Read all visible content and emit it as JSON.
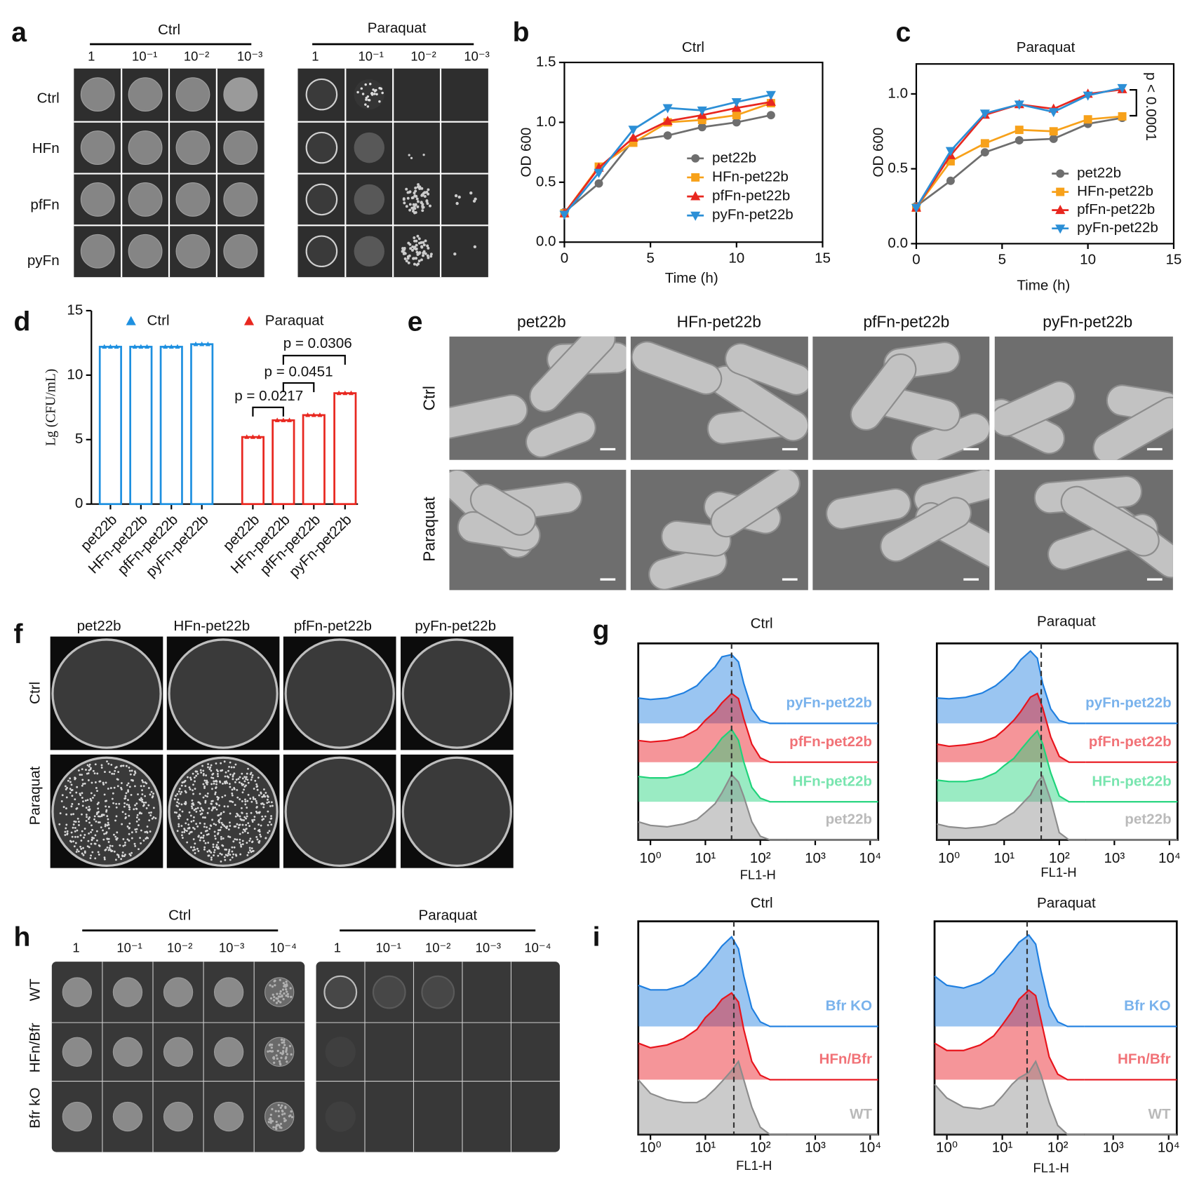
{
  "panel_labels": [
    "a",
    "b",
    "c",
    "d",
    "e",
    "f",
    "g",
    "h",
    "i"
  ],
  "panel_a": {
    "groups": [
      "Ctrl",
      "Paraquat"
    ],
    "dilutions": [
      "1",
      "10⁻¹",
      "10⁻²",
      "10⁻³"
    ],
    "rows": [
      "Ctrl",
      "HFn",
      "pfFn",
      "pyFn"
    ]
  },
  "panel_e": {
    "columns": [
      "pet22b",
      "HFn-pet22b",
      "pfFn-pet22b",
      "pyFn-pet22b"
    ],
    "rows": [
      "Ctrl",
      "Paraquat"
    ]
  },
  "panel_f": {
    "columns": [
      "pet22b",
      "HFn-pet22b",
      "pfFn-pet22b",
      "pyFn-pet22b"
    ],
    "rows": [
      "Ctrl",
      "Paraquat"
    ]
  },
  "panel_h": {
    "groups": [
      "Ctrl",
      "Paraquat"
    ],
    "dilutions": [
      "1",
      "10⁻¹",
      "10⁻²",
      "10⁻³",
      "10⁻⁴"
    ],
    "rows": [
      "WT",
      "HFn/Bfr",
      "Bfr kO"
    ]
  },
  "chart_data": [
    {
      "type": "line",
      "title": "Ctrl",
      "x_label": "Time (h)",
      "y_label": "OD 600",
      "x": [
        0,
        2,
        4,
        6,
        8,
        10,
        12
      ],
      "xlim": [
        0,
        15
      ],
      "xticks": [
        0,
        5,
        10,
        15
      ],
      "ylim": [
        0,
        1.5
      ],
      "yticks": [
        {
          "value": 0,
          "label": "0.0"
        },
        0.5,
        {
          "value": 1,
          "label": "1.0"
        },
        1.5
      ],
      "legend": "lower right",
      "series": [
        {
          "name": "pet22b",
          "color": "#6e6e6e",
          "marker": "circle",
          "values": [
            0.25,
            0.49,
            0.85,
            0.89,
            0.96,
            1.0,
            1.06
          ]
        },
        {
          "name": "HFn-pet22b",
          "color": "#f7a11a",
          "marker": "square",
          "values": [
            0.24,
            0.63,
            0.83,
            1.0,
            1.02,
            1.06,
            1.16
          ]
        },
        {
          "name": "pfFn-pet22b",
          "color": "#e8271f",
          "marker": "triangle",
          "values": [
            0.24,
            0.62,
            0.87,
            1.01,
            1.06,
            1.12,
            1.17
          ]
        },
        {
          "name": "pyFn-pet22b",
          "color": "#2c8fd6",
          "marker": "triangle-down",
          "values": [
            0.23,
            0.58,
            0.94,
            1.12,
            1.1,
            1.17,
            1.23
          ]
        }
      ]
    },
    {
      "type": "line",
      "title": "Paraquat",
      "x_label": "Time (h)",
      "y_label": "OD 600",
      "x": [
        0,
        2,
        4,
        6,
        8,
        10,
        12
      ],
      "xlim": [
        0,
        15
      ],
      "xticks": [
        0,
        5,
        10,
        15
      ],
      "ylim": [
        0,
        1.2
      ],
      "yticks": [
        {
          "value": 0,
          "label": "0.0"
        },
        0.5,
        {
          "value": 1,
          "label": "1.0"
        }
      ],
      "legend": "lower right",
      "annotations": [
        "p < 0.0001"
      ],
      "series": [
        {
          "name": "pet22b",
          "color": "#6e6e6e",
          "marker": "circle",
          "values": [
            0.25,
            0.42,
            0.61,
            0.69,
            0.7,
            0.8,
            0.84
          ]
        },
        {
          "name": "HFn-pet22b",
          "color": "#f7a11a",
          "marker": "square",
          "values": [
            0.24,
            0.55,
            0.67,
            0.76,
            0.75,
            0.83,
            0.85
          ]
        },
        {
          "name": "pfFn-pet22b",
          "color": "#e8271f",
          "marker": "triangle",
          "values": [
            0.24,
            0.59,
            0.86,
            0.93,
            0.9,
            1.0,
            1.03
          ]
        },
        {
          "name": "pyFn-pet22b",
          "color": "#2c8fd6",
          "marker": "triangle-down",
          "values": [
            0.24,
            0.62,
            0.87,
            0.93,
            0.88,
            0.99,
            1.04
          ]
        }
      ]
    },
    {
      "type": "bar",
      "y_label": "Lg (CFU/mL)",
      "categories": [
        "pet22b",
        "HFn-pet22b",
        "pfFn-pet22b",
        "pyFn-pet22b",
        "pet22b",
        "HFn-pet22b",
        "pfFn-pet22b",
        "pyFn-pet22b"
      ],
      "ylim": [
        0,
        15
      ],
      "yticks": [
        0,
        5,
        10,
        15
      ],
      "legend": "top",
      "annotations": [
        "p = 0.0217",
        "p = 0.0451",
        "p = 0.0306"
      ],
      "series": [
        {
          "name": "Ctrl",
          "color": "#1e90e0",
          "values": [
            12.2,
            12.2,
            12.2,
            12.4,
            null,
            null,
            null,
            null
          ]
        },
        {
          "name": "Paraquat",
          "color": "#e8271f",
          "values": [
            null,
            null,
            null,
            null,
            5.2,
            6.5,
            6.9,
            8.6
          ]
        }
      ]
    },
    {
      "type": "area",
      "title": "Ctrl",
      "x_label": "FL1-H",
      "log_x": true,
      "x": [
        0.6,
        1,
        2,
        4,
        7,
        10,
        15,
        20,
        30,
        40,
        50,
        70,
        100,
        150,
        300
      ],
      "xlim": [
        0.6,
        14000
      ],
      "xticks": [
        {
          "value": 1,
          "label": "10⁰"
        },
        {
          "value": 10,
          "label": "10¹"
        },
        {
          "value": 100,
          "label": "10²"
        },
        {
          "value": 1000,
          "label": "10³"
        },
        {
          "value": 10000,
          "label": "10⁴"
        }
      ],
      "ylim": [
        0,
        100
      ],
      "reference_line": 30,
      "series": [
        {
          "name": "pet22b",
          "color": "#8c8c8c",
          "values": [
            25,
            20,
            18,
            22,
            28,
            38,
            50,
            65,
            90,
            80,
            60,
            25,
            5,
            0,
            0
          ]
        },
        {
          "name": "HFn-pet22b",
          "color": "#1fd37a",
          "values": [
            35,
            33,
            33,
            38,
            48,
            60,
            75,
            88,
            100,
            85,
            55,
            20,
            5,
            0,
            0
          ]
        },
        {
          "name": "pfFn-pet22b",
          "color": "#e8141c",
          "values": [
            30,
            28,
            30,
            35,
            45,
            58,
            70,
            82,
            95,
            88,
            60,
            25,
            6,
            0,
            0
          ]
        },
        {
          "name": "pyFn-pet22b",
          "color": "#1f7fe0",
          "values": [
            35,
            33,
            35,
            42,
            52,
            65,
            78,
            92,
            95,
            85,
            55,
            20,
            4,
            0,
            0
          ]
        }
      ]
    },
    {
      "type": "area",
      "title": "Paraquat",
      "x_label": "FL1-H",
      "log_x": true,
      "x": [
        0.6,
        1,
        2,
        4,
        7,
        10,
        15,
        20,
        30,
        40,
        50,
        70,
        100,
        150,
        300
      ],
      "xlim": [
        0.6,
        14000
      ],
      "xticks": [
        {
          "value": 1,
          "label": "10⁰"
        },
        {
          "value": 10,
          "label": "10¹"
        },
        {
          "value": 100,
          "label": "10²"
        },
        {
          "value": 1000,
          "label": "10³"
        },
        {
          "value": 10000,
          "label": "10⁴"
        }
      ],
      "ylim": [
        0,
        100
      ],
      "reference_line": 47,
      "series": [
        {
          "name": "pet22b",
          "color": "#8c8c8c",
          "values": [
            22,
            18,
            16,
            18,
            22,
            30,
            38,
            48,
            62,
            80,
            88,
            55,
            10,
            0,
            0
          ]
        },
        {
          "name": "HFn-pet22b",
          "color": "#1fd37a",
          "values": [
            30,
            28,
            28,
            32,
            40,
            50,
            60,
            72,
            88,
            98,
            80,
            40,
            8,
            0,
            0
          ]
        },
        {
          "name": "pfFn-pet22b",
          "color": "#e8141c",
          "values": [
            25,
            22,
            24,
            28,
            35,
            45,
            58,
            70,
            90,
            95,
            75,
            35,
            8,
            0,
            0
          ]
        },
        {
          "name": "pyFn-pet22b",
          "color": "#1f7fe0",
          "values": [
            35,
            34,
            36,
            42,
            52,
            62,
            75,
            88,
            100,
            90,
            55,
            20,
            4,
            0,
            0
          ]
        }
      ]
    },
    {
      "type": "area",
      "title": "Ctrl",
      "x_label": "FL1-H",
      "log_x": true,
      "x": [
        0.6,
        1,
        2,
        4,
        7,
        10,
        15,
        20,
        30,
        40,
        50,
        70,
        100,
        150,
        300
      ],
      "xlim": [
        0.6,
        14000
      ],
      "xticks": [
        {
          "value": 1,
          "label": "10⁰"
        },
        {
          "value": 10,
          "label": "10¹"
        },
        {
          "value": 100,
          "label": "10²"
        },
        {
          "value": 1000,
          "label": "10³"
        },
        {
          "value": 10000,
          "label": "10⁴"
        }
      ],
      "ylim": [
        0,
        100
      ],
      "reference_line": 33,
      "series": [
        {
          "name": "WT",
          "color": "#8c8c8c",
          "values": [
            60,
            45,
            38,
            35,
            35,
            40,
            50,
            58,
            70,
            80,
            60,
            30,
            8,
            0,
            0
          ]
        },
        {
          "name": "HFn/Bfr",
          "color": "#e8141c",
          "values": [
            40,
            35,
            38,
            45,
            55,
            68,
            78,
            88,
            95,
            85,
            55,
            20,
            5,
            0,
            0
          ]
        },
        {
          "name": "Bfr KO",
          "color": "#1f7fe0",
          "values": [
            45,
            40,
            40,
            45,
            55,
            65,
            78,
            88,
            98,
            85,
            55,
            20,
            5,
            0,
            0
          ]
        }
      ]
    },
    {
      "type": "area",
      "title": "Paraquat",
      "x_label": "FL1-H",
      "log_x": true,
      "x": [
        0.6,
        1,
        2,
        4,
        7,
        10,
        15,
        20,
        30,
        40,
        50,
        70,
        100,
        150,
        300
      ],
      "xlim": [
        0.6,
        14000
      ],
      "xticks": [
        {
          "value": 1,
          "label": "10⁰"
        },
        {
          "value": 10,
          "label": "10¹"
        },
        {
          "value": 100,
          "label": "10²"
        },
        {
          "value": 1000,
          "label": "10³"
        },
        {
          "value": 10000,
          "label": "10⁴"
        }
      ],
      "ylim": [
        0,
        100
      ],
      "reference_line": 28,
      "series": [
        {
          "name": "WT",
          "color": "#8c8c8c",
          "values": [
            55,
            40,
            30,
            28,
            32,
            42,
            55,
            62,
            68,
            80,
            65,
            35,
            10,
            0,
            0
          ]
        },
        {
          "name": "HFn/Bfr",
          "color": "#e8141c",
          "values": [
            40,
            32,
            32,
            38,
            48,
            60,
            75,
            88,
            98,
            92,
            65,
            25,
            6,
            0,
            0
          ]
        },
        {
          "name": "Bfr KO",
          "color": "#1f7fe0",
          "values": [
            55,
            45,
            42,
            48,
            58,
            70,
            82,
            92,
            100,
            90,
            60,
            22,
            5,
            0,
            0
          ]
        }
      ]
    }
  ]
}
